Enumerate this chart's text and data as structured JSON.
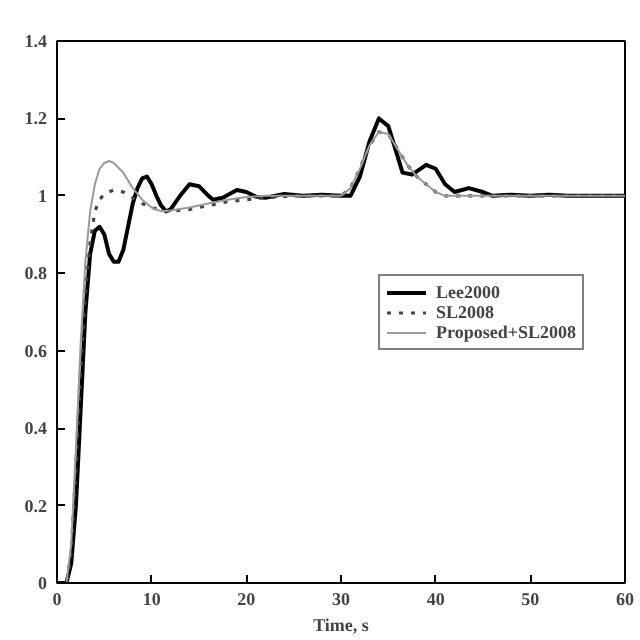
{
  "chart_data": {
    "type": "line",
    "xlabel": "Time, s",
    "xlim": [
      0,
      60
    ],
    "ylim": [
      0,
      1.4
    ],
    "xticks": [
      0,
      10,
      20,
      30,
      40,
      50,
      60
    ],
    "yticks": [
      0,
      0.2,
      0.4,
      0.6,
      0.8,
      1,
      1.2,
      1.4
    ],
    "grid": false,
    "legend": "right",
    "series": [
      {
        "name": "Lee2000",
        "color": "#000000",
        "line_style": "solid",
        "x": [
          0,
          1,
          1.5,
          2,
          2.5,
          3,
          3.5,
          4,
          4.5,
          5,
          5.5,
          6,
          6.5,
          7,
          7.5,
          8,
          8.5,
          9,
          9.5,
          10,
          10.5,
          11,
          11.5,
          12,
          13,
          14,
          15,
          16,
          16.5,
          17.5,
          19,
          20,
          21,
          22,
          24,
          26,
          28,
          30,
          31,
          32,
          33,
          34,
          35,
          36,
          36.5,
          37.5,
          39,
          40,
          41,
          42,
          43.5,
          45,
          46,
          48,
          50,
          52,
          54,
          56,
          58,
          60
        ],
        "values": [
          0,
          0,
          0.05,
          0.2,
          0.45,
          0.7,
          0.85,
          0.91,
          0.92,
          0.9,
          0.85,
          0.83,
          0.83,
          0.86,
          0.92,
          0.98,
          1.02,
          1.045,
          1.05,
          1.03,
          1.0,
          0.975,
          0.96,
          0.965,
          1.0,
          1.03,
          1.025,
          1.0,
          0.99,
          0.995,
          1.015,
          1.01,
          0.998,
          0.995,
          1.005,
          1.0,
          1.003,
          1.0,
          1.0,
          1.05,
          1.14,
          1.2,
          1.18,
          1.1,
          1.06,
          1.055,
          1.08,
          1.07,
          1.03,
          1.01,
          1.02,
          1.01,
          1.0,
          1.003,
          1.0,
          1.003,
          1.0,
          1.0,
          1.0,
          1.0
        ]
      },
      {
        "name": "SL2008",
        "color": "#444444",
        "line_style": "dotted",
        "x": [
          0,
          1,
          1.5,
          2,
          2.5,
          3,
          3.5,
          4,
          4.5,
          5,
          6,
          7,
          8,
          9,
          10,
          11,
          12,
          14,
          16,
          18,
          20,
          22,
          25,
          28,
          30,
          31,
          32,
          33,
          34,
          35,
          36,
          37,
          38,
          39,
          40,
          41,
          43,
          45,
          50,
          55,
          60
        ],
        "values": [
          0,
          0,
          0.08,
          0.3,
          0.55,
          0.75,
          0.88,
          0.96,
          0.99,
          1.005,
          1.015,
          1.01,
          0.995,
          0.98,
          0.97,
          0.962,
          0.96,
          0.965,
          0.975,
          0.985,
          0.99,
          0.995,
          1.0,
          1.0,
          1.0,
          1.02,
          1.07,
          1.13,
          1.165,
          1.16,
          1.12,
          1.08,
          1.05,
          1.03,
          1.01,
          1.0,
          1.0,
          1.0,
          1.0,
          1.0,
          1.0
        ]
      },
      {
        "name": "Proposed+SL2008",
        "color": "#9a9a9a",
        "line_style": "solid",
        "x": [
          0,
          1,
          1.5,
          2,
          2.5,
          3,
          3.5,
          4,
          4.5,
          5,
          5.5,
          6,
          7,
          8,
          9,
          10,
          11,
          12,
          14,
          16,
          18,
          20,
          22,
          25,
          28,
          30,
          31,
          32,
          33,
          34,
          35,
          36,
          37,
          38,
          39,
          40,
          41,
          43,
          45,
          50,
          55,
          60
        ],
        "values": [
          0,
          0,
          0.1,
          0.35,
          0.62,
          0.83,
          0.96,
          1.03,
          1.07,
          1.085,
          1.09,
          1.085,
          1.06,
          1.02,
          0.99,
          0.97,
          0.96,
          0.962,
          0.97,
          0.98,
          0.99,
          0.997,
          1.0,
          1.0,
          1.0,
          1.0,
          1.02,
          1.07,
          1.13,
          1.165,
          1.16,
          1.12,
          1.08,
          1.05,
          1.03,
          1.01,
          1.0,
          1.0,
          1.0,
          1.0,
          1.0,
          1.0
        ]
      }
    ]
  }
}
